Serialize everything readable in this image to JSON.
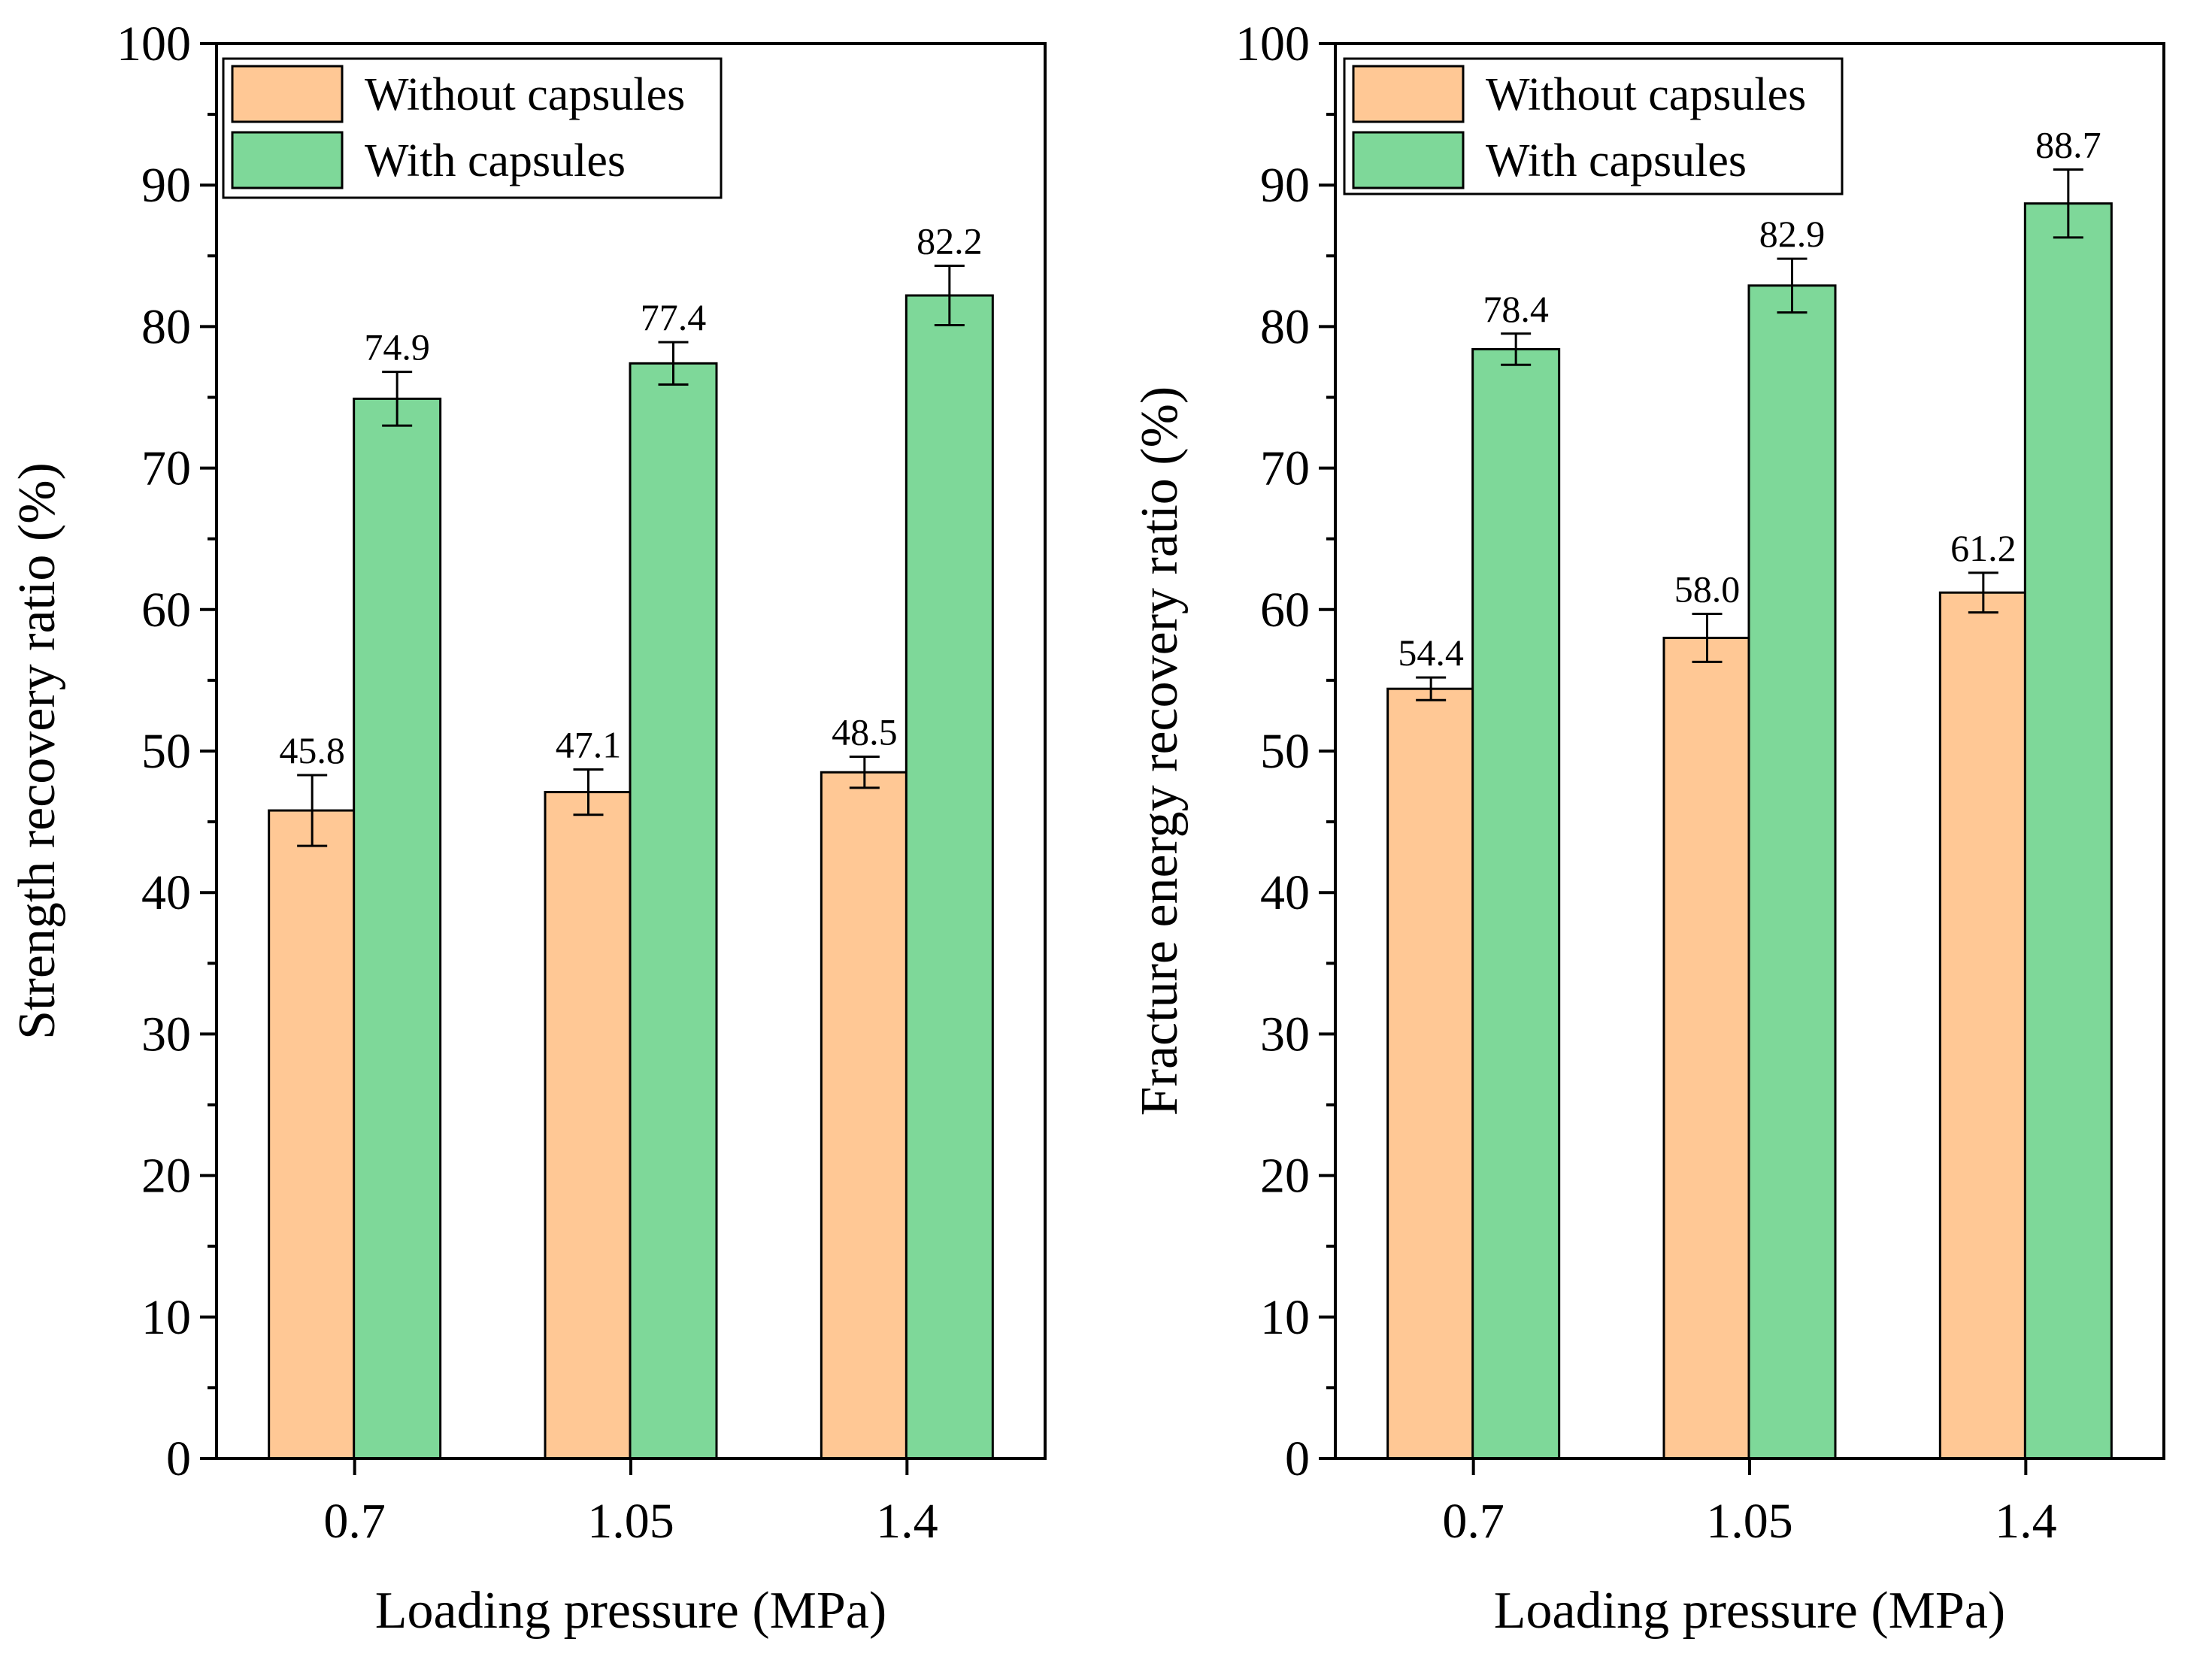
{
  "colors": {
    "without": "#FFC895",
    "with": "#7ED899",
    "axis": "#000000",
    "background": "#ffffff"
  },
  "chart_data": [
    {
      "type": "bar",
      "title": "",
      "xlabel": "Loading pressure (MPa)",
      "ylabel": "Strength recovery ratio (%)",
      "categories": [
        "0.7",
        "1.05",
        "1.4"
      ],
      "ylim": [
        0,
        100
      ],
      "yticks": [
        "0",
        "10",
        "20",
        "30",
        "40",
        "50",
        "60",
        "70",
        "80",
        "90",
        "100"
      ],
      "legend": {
        "position": "top-left"
      },
      "series": [
        {
          "name": "Without capsules",
          "key": "without",
          "values": [
            45.8,
            47.1,
            48.5
          ],
          "errors": [
            2.5,
            1.6,
            1.1
          ],
          "labels": [
            "45.8",
            "47.1",
            "48.5"
          ]
        },
        {
          "name": "With capsules",
          "key": "with",
          "values": [
            74.9,
            77.4,
            82.2
          ],
          "errors": [
            1.9,
            1.5,
            2.1
          ],
          "labels": [
            "74.9",
            "77.4",
            "82.2"
          ]
        }
      ]
    },
    {
      "type": "bar",
      "title": "",
      "xlabel": "Loading pressure (MPa)",
      "ylabel": "Fracture energy recovery ratio (%)",
      "categories": [
        "0.7",
        "1.05",
        "1.4"
      ],
      "ylim": [
        0,
        100
      ],
      "yticks": [
        "0",
        "10",
        "20",
        "30",
        "40",
        "50",
        "60",
        "70",
        "80",
        "90",
        "100"
      ],
      "legend": {
        "position": "top-left"
      },
      "series": [
        {
          "name": "Without capsules",
          "key": "without",
          "values": [
            54.4,
            58.0,
            61.2
          ],
          "errors": [
            0.8,
            1.7,
            1.4
          ],
          "labels": [
            "54.4",
            "58.0",
            "61.2"
          ]
        },
        {
          "name": "With capsules",
          "key": "with",
          "values": [
            78.4,
            82.9,
            88.7
          ],
          "errors": [
            1.1,
            1.9,
            2.4
          ],
          "labels": [
            "78.4",
            "82.9",
            "88.7"
          ]
        }
      ]
    }
  ]
}
